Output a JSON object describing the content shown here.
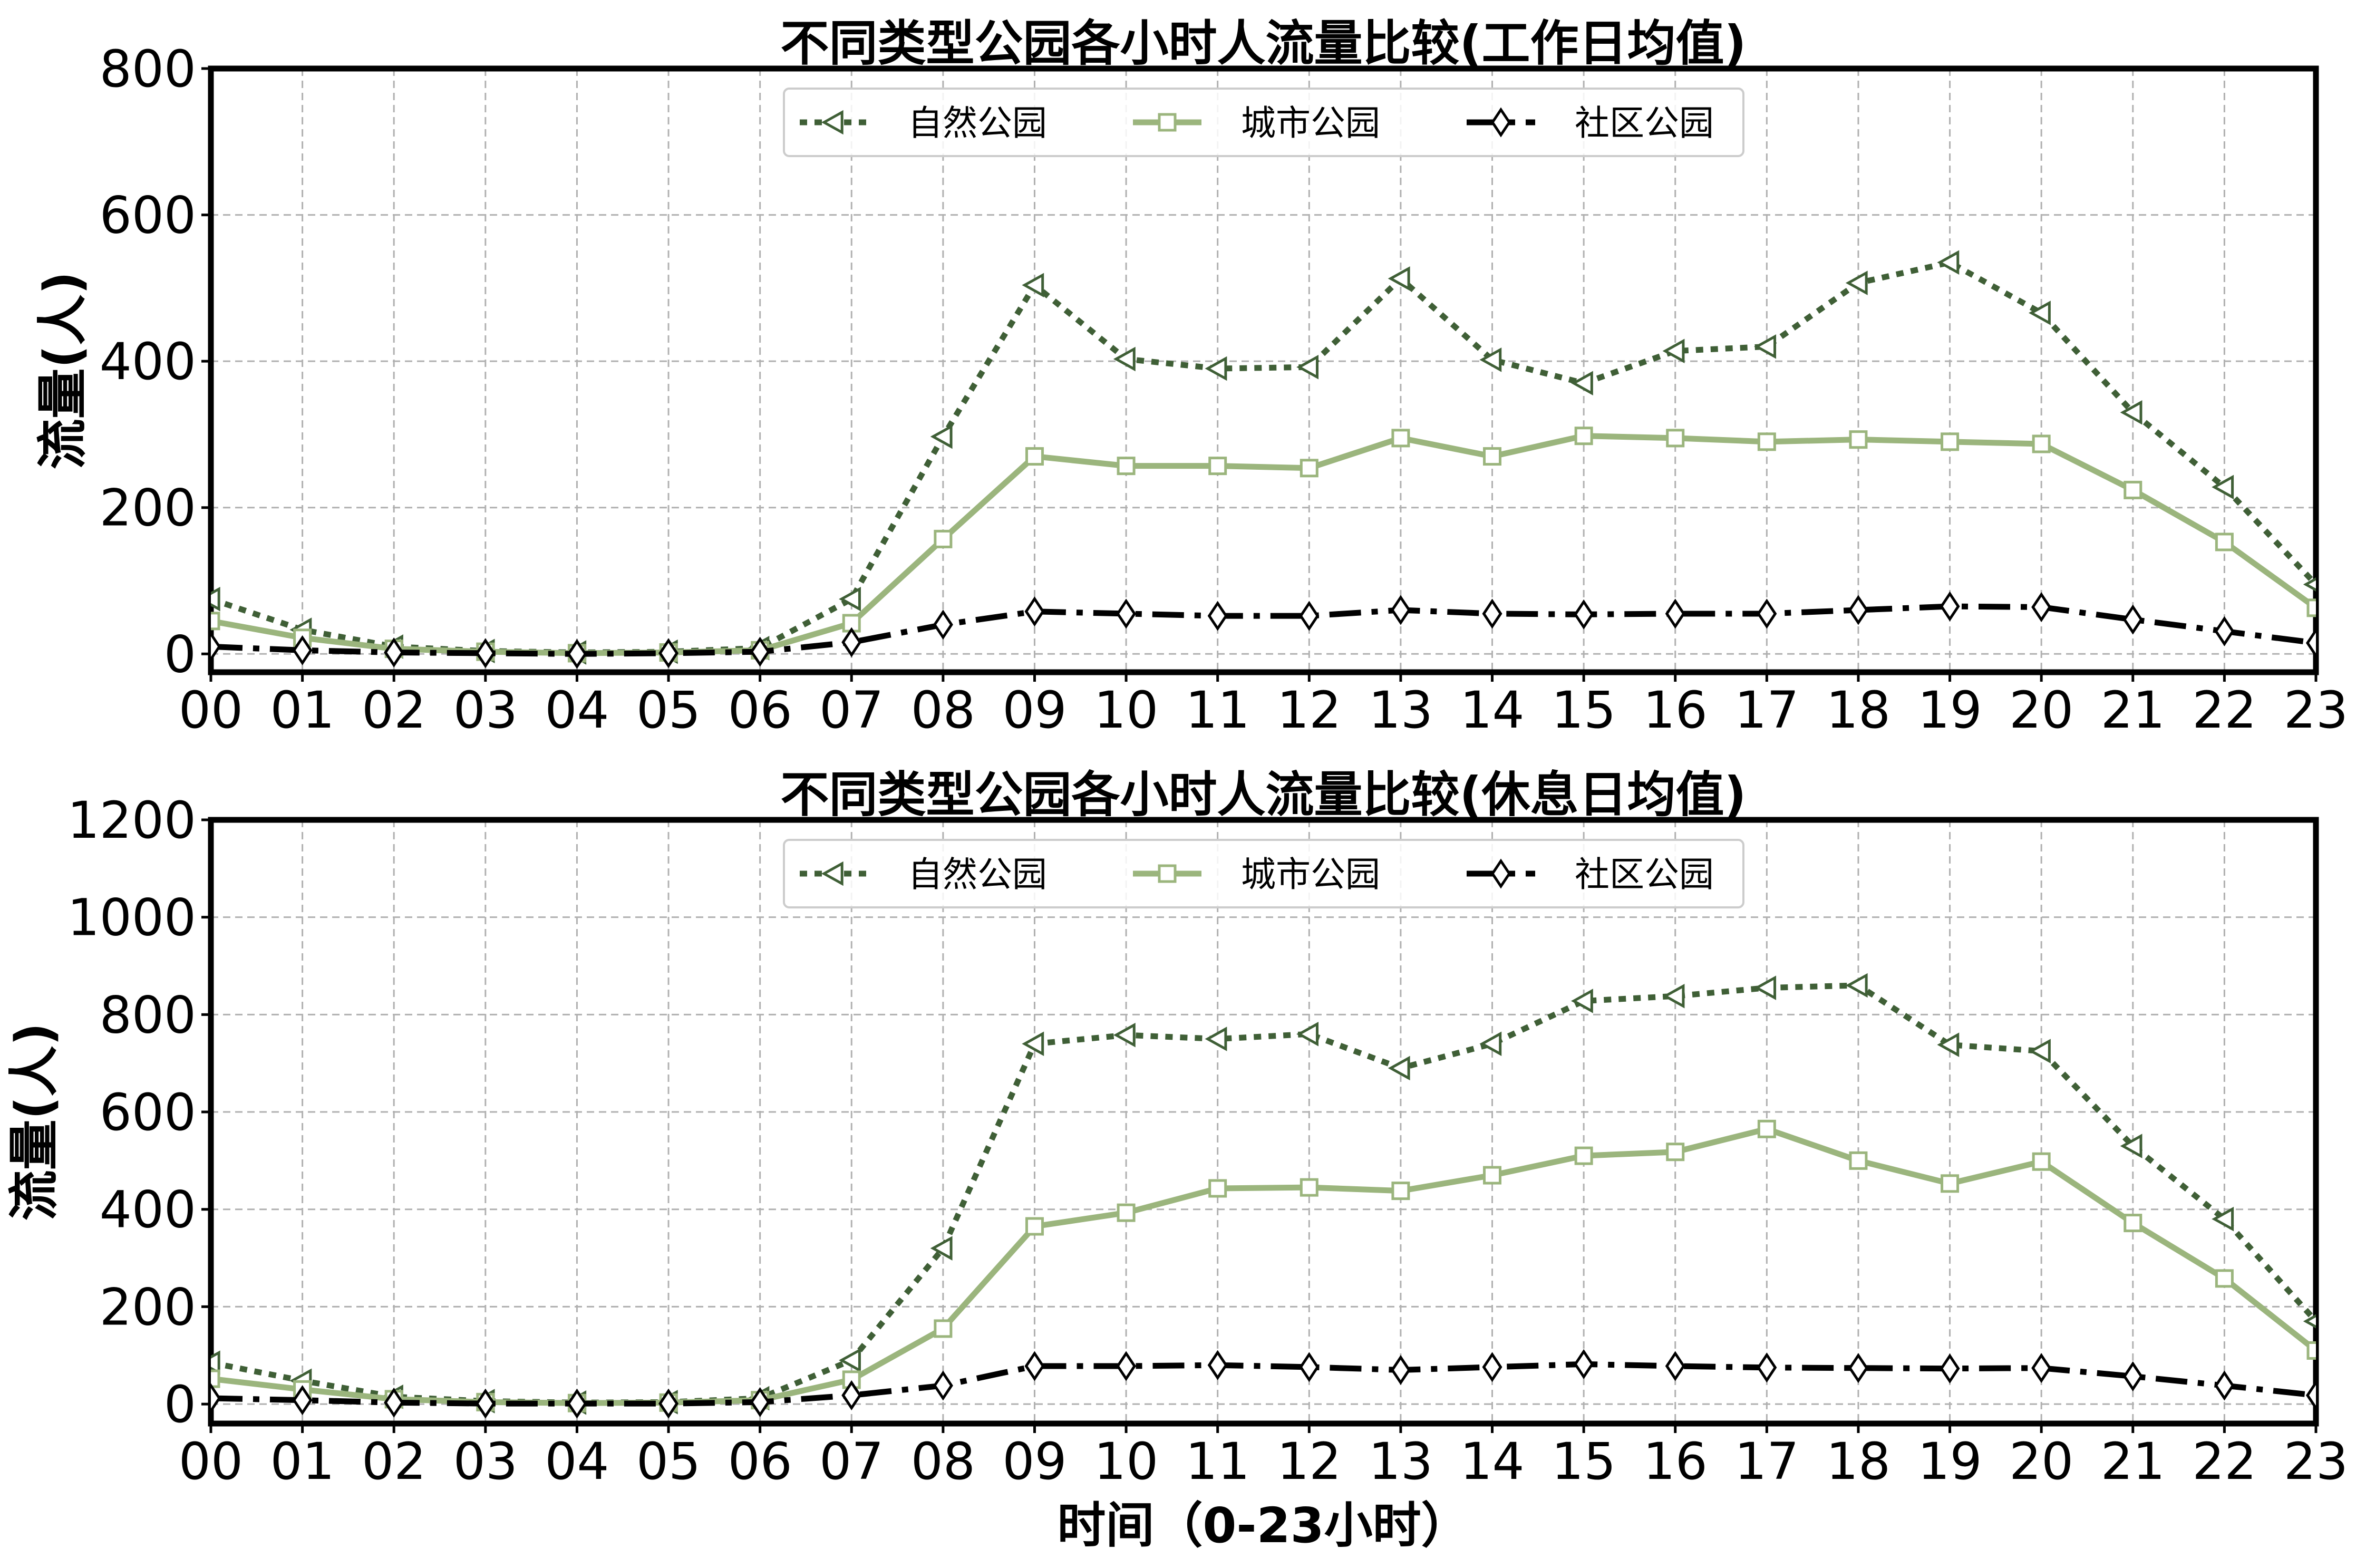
{
  "chart_data": [
    {
      "type": "line",
      "title": "不同类型公园各小时人流量比较(工作日均值)",
      "xlabel": "",
      "ylabel": "流量(人)",
      "ylim": [
        -25,
        800
      ],
      "yticks": [
        0,
        200,
        400,
        600,
        800
      ],
      "grid": true,
      "legend_position": "top-center",
      "categories": [
        "00",
        "01",
        "02",
        "03",
        "04",
        "05",
        "06",
        "07",
        "08",
        "09",
        "10",
        "11",
        "12",
        "13",
        "14",
        "15",
        "16",
        "17",
        "18",
        "19",
        "20",
        "21",
        "22",
        "23"
      ],
      "series": [
        {
          "name": "自然公园",
          "color": "#3f5f36",
          "linestyle": "dotted",
          "marker": "triangle-left",
          "values": [
            75,
            33,
            10,
            4,
            2,
            3,
            8,
            75,
            297,
            504,
            403,
            390,
            392,
            513,
            402,
            370,
            414,
            420,
            507,
            535,
            466,
            330,
            228,
            95
          ]
        },
        {
          "name": "城市公园",
          "color": "#9bb57d",
          "linestyle": "solid",
          "marker": "square",
          "values": [
            45,
            22,
            7,
            3,
            1,
            2,
            5,
            42,
            157,
            270,
            257,
            257,
            254,
            295,
            270,
            298,
            295,
            290,
            293,
            290,
            287,
            224,
            153,
            63
          ]
        },
        {
          "name": "社区公园",
          "color": "#000000",
          "linestyle": "dashdot",
          "marker": "diamond",
          "values": [
            10,
            5,
            2,
            1,
            0,
            1,
            3,
            16,
            40,
            58,
            55,
            52,
            52,
            60,
            55,
            54,
            55,
            55,
            60,
            65,
            64,
            47,
            31,
            15
          ]
        }
      ]
    },
    {
      "type": "line",
      "title": "不同类型公园各小时人流量比较(休息日均值)",
      "xlabel": "时间（0-23小时）",
      "ylabel": "流量(人)",
      "ylim": [
        -40,
        1200
      ],
      "yticks": [
        0,
        200,
        400,
        600,
        800,
        1000,
        1200
      ],
      "grid": true,
      "legend_position": "top-center",
      "categories": [
        "00",
        "01",
        "02",
        "03",
        "04",
        "05",
        "06",
        "07",
        "08",
        "09",
        "10",
        "11",
        "12",
        "13",
        "14",
        "15",
        "16",
        "17",
        "18",
        "19",
        "20",
        "21",
        "22",
        "23"
      ],
      "series": [
        {
          "name": "自然公园",
          "color": "#3f5f36",
          "linestyle": "dotted",
          "marker": "triangle-left",
          "values": [
            85,
            48,
            15,
            6,
            3,
            4,
            12,
            90,
            320,
            740,
            758,
            750,
            760,
            690,
            740,
            828,
            838,
            855,
            860,
            738,
            725,
            530,
            380,
            170
          ]
        },
        {
          "name": "城市公园",
          "color": "#9bb57d",
          "linestyle": "solid",
          "marker": "square",
          "values": [
            52,
            30,
            10,
            4,
            2,
            3,
            8,
            50,
            155,
            365,
            393,
            443,
            445,
            438,
            470,
            510,
            518,
            565,
            500,
            453,
            498,
            372,
            258,
            110
          ]
        },
        {
          "name": "社区公园",
          "color": "#000000",
          "linestyle": "dashdot",
          "marker": "diamond",
          "values": [
            12,
            8,
            3,
            1,
            1,
            1,
            4,
            18,
            38,
            78,
            78,
            80,
            76,
            70,
            76,
            82,
            78,
            75,
            74,
            73,
            74,
            57,
            38,
            18
          ]
        }
      ]
    }
  ]
}
